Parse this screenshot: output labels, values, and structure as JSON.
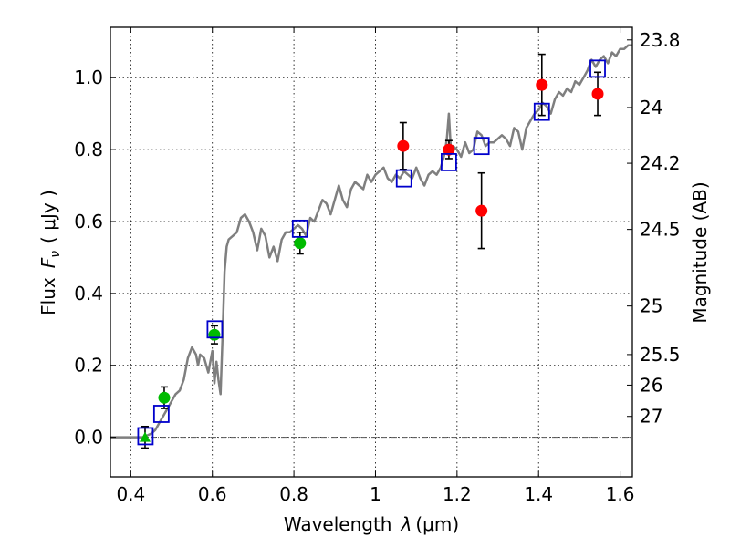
{
  "chart_data": {
    "type": "scatter",
    "xlabel": "Wavelength",
    "xlabel_symbol": "λ",
    "xlabel_unit": "(μm)",
    "ylabel": "Flux",
    "ylabel_symbol": "F",
    "ylabel_subscript": "ν",
    "ylabel_unit": "( μJy )",
    "ylabel_right": "Magnitude (AB)",
    "xlim": [
      0.35,
      1.63
    ],
    "ylim": [
      -0.11,
      1.14
    ],
    "x_ticks": [
      0.4,
      0.6,
      0.8,
      1.0,
      1.2,
      1.4,
      1.6
    ],
    "x_tick_labels": [
      "0.4",
      "0.6",
      "0.8",
      "1",
      "1.2",
      "1.4",
      "1.6"
    ],
    "y_ticks": [
      0.0,
      0.2,
      0.4,
      0.6,
      0.8,
      1.0
    ],
    "y_tick_labels": [
      "0.0",
      "0.2",
      "0.4",
      "0.6",
      "0.8",
      "1.0"
    ],
    "right_ticks": [
      {
        "label": "23.8",
        "flux": 1.105
      },
      {
        "label": "24",
        "flux": 0.917
      },
      {
        "label": "24.2",
        "flux": 0.762
      },
      {
        "label": "24.5",
        "flux": 0.578
      },
      {
        "label": "25",
        "flux": 0.365
      },
      {
        "label": "25.5",
        "flux": 0.23
      },
      {
        "label": "26",
        "flux": 0.145
      },
      {
        "label": "27",
        "flux": 0.058
      }
    ],
    "grid": true,
    "zero_line": true,
    "colors": {
      "model": "#7f7f7f",
      "green": "#00bb00",
      "red": "#ff0000",
      "box": "#0000cc",
      "error": "#000000"
    },
    "series": [
      {
        "name": "Model SED",
        "type": "line",
        "x": [
          0.35,
          0.43,
          0.44,
          0.45,
          0.46,
          0.47,
          0.48,
          0.49,
          0.5,
          0.51,
          0.52,
          0.53,
          0.54,
          0.55,
          0.56,
          0.565,
          0.57,
          0.58,
          0.59,
          0.6,
          0.605,
          0.61,
          0.615,
          0.62,
          0.625,
          0.63,
          0.635,
          0.64,
          0.65,
          0.66,
          0.67,
          0.68,
          0.69,
          0.7,
          0.71,
          0.72,
          0.73,
          0.74,
          0.75,
          0.76,
          0.77,
          0.78,
          0.79,
          0.8,
          0.81,
          0.82,
          0.83,
          0.84,
          0.85,
          0.86,
          0.87,
          0.88,
          0.89,
          0.9,
          0.91,
          0.92,
          0.93,
          0.94,
          0.95,
          0.96,
          0.97,
          0.98,
          0.99,
          1.0,
          1.01,
          1.02,
          1.03,
          1.04,
          1.05,
          1.06,
          1.07,
          1.08,
          1.09,
          1.1,
          1.11,
          1.12,
          1.13,
          1.14,
          1.15,
          1.16,
          1.17,
          1.175,
          1.18,
          1.185,
          1.19,
          1.2,
          1.21,
          1.22,
          1.23,
          1.24,
          1.25,
          1.26,
          1.27,
          1.28,
          1.29,
          1.3,
          1.31,
          1.32,
          1.33,
          1.34,
          1.35,
          1.36,
          1.37,
          1.38,
          1.39,
          1.4,
          1.41,
          1.42,
          1.43,
          1.44,
          1.45,
          1.46,
          1.47,
          1.48,
          1.49,
          1.5,
          1.51,
          1.52,
          1.53,
          1.54,
          1.55,
          1.56,
          1.57,
          1.58,
          1.59,
          1.6,
          1.61,
          1.62,
          1.63
        ],
        "y": [
          0.0,
          0.0,
          0.005,
          0.01,
          0.02,
          0.04,
          0.06,
          0.08,
          0.1,
          0.12,
          0.13,
          0.16,
          0.22,
          0.25,
          0.23,
          0.2,
          0.23,
          0.22,
          0.18,
          0.24,
          0.15,
          0.21,
          0.16,
          0.12,
          0.28,
          0.46,
          0.53,
          0.55,
          0.56,
          0.57,
          0.61,
          0.62,
          0.6,
          0.57,
          0.52,
          0.58,
          0.56,
          0.5,
          0.53,
          0.49,
          0.55,
          0.57,
          0.57,
          0.58,
          0.59,
          0.58,
          0.56,
          0.61,
          0.6,
          0.63,
          0.66,
          0.65,
          0.62,
          0.66,
          0.7,
          0.66,
          0.64,
          0.69,
          0.71,
          0.7,
          0.69,
          0.73,
          0.71,
          0.73,
          0.74,
          0.75,
          0.72,
          0.71,
          0.73,
          0.72,
          0.74,
          0.73,
          0.72,
          0.75,
          0.72,
          0.7,
          0.73,
          0.74,
          0.73,
          0.75,
          0.79,
          0.83,
          0.9,
          0.8,
          0.81,
          0.8,
          0.78,
          0.82,
          0.79,
          0.8,
          0.85,
          0.84,
          0.81,
          0.82,
          0.82,
          0.83,
          0.84,
          0.83,
          0.81,
          0.86,
          0.85,
          0.8,
          0.86,
          0.88,
          0.9,
          0.91,
          0.93,
          0.92,
          0.9,
          0.94,
          0.96,
          0.95,
          0.97,
          0.96,
          0.99,
          0.98,
          1.0,
          1.02,
          1.05,
          1.03,
          1.05,
          1.06,
          1.04,
          1.07,
          1.06,
          1.08,
          1.08,
          1.09,
          1.09
        ]
      },
      {
        "name": "Green detections",
        "type": "circle",
        "x": [
          0.482,
          0.605,
          0.815
        ],
        "y": [
          0.11,
          0.285,
          0.54
        ],
        "err": [
          0.03,
          0.025,
          0.03
        ]
      },
      {
        "name": "Green upper limit",
        "type": "triangle",
        "x": [
          0.435
        ],
        "y": [
          0.0
        ],
        "err": [
          0.03
        ]
      },
      {
        "name": "Red detections",
        "type": "circle",
        "x": [
          1.068,
          1.18,
          1.26,
          1.408,
          1.545
        ],
        "y": [
          0.81,
          0.8,
          0.63,
          0.98,
          0.955
        ],
        "err": [
          0.065,
          0.025,
          0.105,
          0.085,
          0.06
        ]
      },
      {
        "name": "Model photometry",
        "type": "box",
        "x": [
          0.436,
          0.475,
          0.606,
          0.815,
          1.07,
          1.18,
          1.26,
          1.408,
          1.545
        ],
        "y": [
          0.003,
          0.065,
          0.3,
          0.58,
          0.72,
          0.765,
          0.81,
          0.905,
          1.025
        ]
      }
    ]
  }
}
